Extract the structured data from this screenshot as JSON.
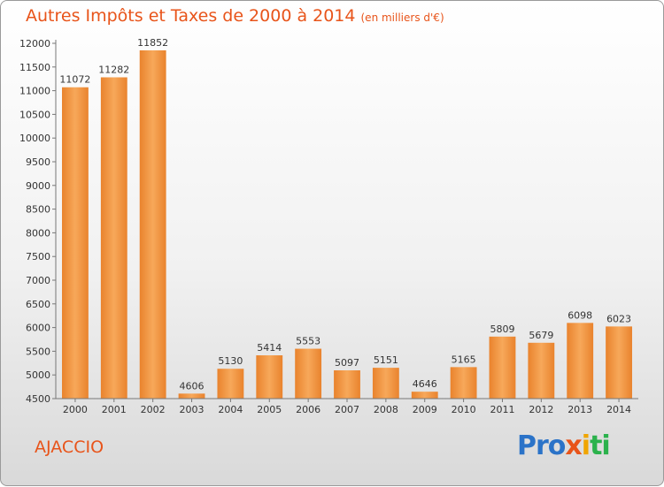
{
  "chart_data": {
    "type": "bar",
    "title": "Autres Impôts et Taxes de 2000 à 2014",
    "subtitle": "(en milliers d'€)",
    "categories": [
      "2000",
      "2001",
      "2002",
      "2003",
      "2004",
      "2005",
      "2006",
      "2007",
      "2008",
      "2009",
      "2010",
      "2011",
      "2012",
      "2013",
      "2014"
    ],
    "values": [
      11072,
      11282,
      11852,
      4606,
      5130,
      5414,
      5553,
      5097,
      5151,
      4646,
      5165,
      5809,
      5679,
      6098,
      6023
    ],
    "ylim": [
      4500,
      12000
    ],
    "yticks": [
      4500,
      5000,
      5500,
      6000,
      6500,
      7000,
      7500,
      8000,
      8500,
      9000,
      9500,
      10000,
      10500,
      11000,
      11500,
      12000
    ],
    "grid": false,
    "bar_color": "#f09a45"
  },
  "location": "AJACCIO",
  "logo": {
    "part1": "Pro",
    "part2": "x",
    "part3": "i",
    "part4": "ti"
  }
}
